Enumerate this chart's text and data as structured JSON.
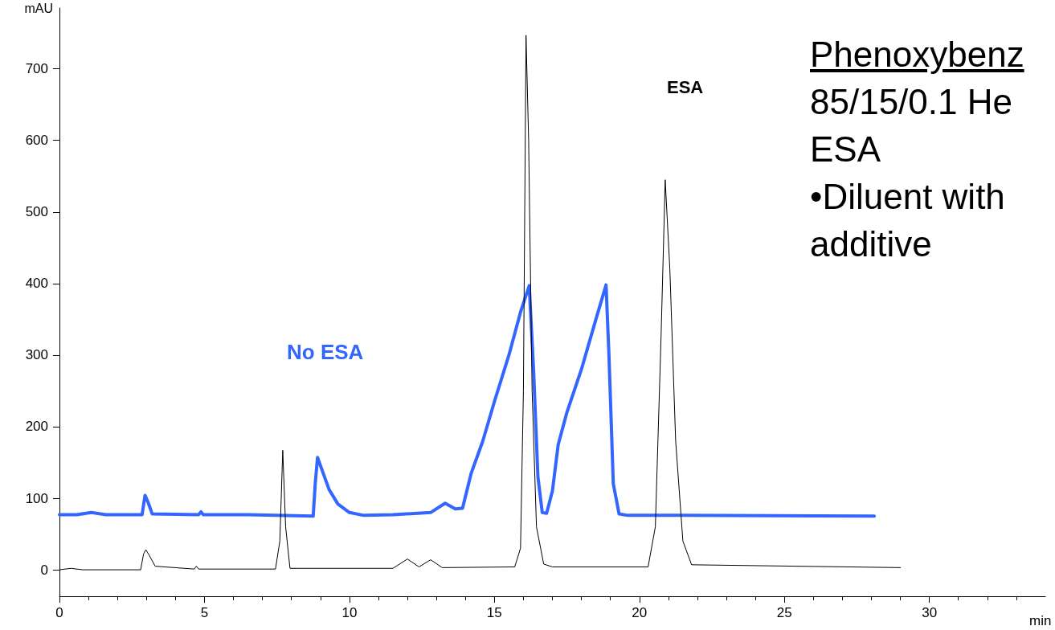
{
  "chart_data": {
    "type": "line",
    "xlabel": "min",
    "ylabel": "mAU",
    "xlim": [
      0,
      34
    ],
    "xticks": [
      0,
      5,
      10,
      15,
      20,
      25,
      30
    ],
    "ylim": [
      -37,
      785
    ],
    "yticks": [
      0,
      100,
      200,
      300,
      400,
      500,
      600,
      700
    ],
    "grid": false,
    "legend": false,
    "marker": "none",
    "line_style": "solid",
    "annotations": [
      "Phenoxybenz",
      "85/15/0.1 He",
      "ESA",
      "•Diluent with",
      "additive"
    ],
    "series": [
      {
        "name": "No ESA",
        "color": "#3366ff",
        "x": [
          0,
          0.6,
          1.1,
          1.6,
          2.85,
          2.95,
          3.05,
          3.2,
          4.8,
          4.88,
          4.96,
          6.5,
          8.75,
          8.82,
          8.9,
          9.05,
          9.3,
          9.6,
          10.0,
          10.5,
          11.5,
          12.8,
          13.3,
          13.65,
          13.9,
          14.2,
          14.6,
          15.0,
          15.5,
          15.9,
          16.2,
          16.35,
          16.5,
          16.65,
          16.8,
          17.0,
          17.2,
          17.5,
          18.0,
          18.5,
          18.85,
          18.95,
          19.1,
          19.3,
          19.6,
          21.5,
          28.1
        ],
        "values": [
          77,
          77,
          80,
          77,
          77,
          104,
          95,
          78,
          77,
          81,
          77,
          77,
          75,
          120,
          157,
          140,
          112,
          92,
          80,
          76,
          77,
          80,
          93,
          85,
          86,
          135,
          180,
          235,
          300,
          360,
          397,
          280,
          130,
          80,
          79,
          110,
          175,
          220,
          280,
          350,
          398,
          300,
          120,
          78,
          76,
          76,
          75
        ]
      },
      {
        "name": "ESA",
        "color": "#000000",
        "x": [
          0,
          0.4,
          0.8,
          2.8,
          2.9,
          2.98,
          3.1,
          3.3,
          4.65,
          4.72,
          4.8,
          7.45,
          7.6,
          7.7,
          7.8,
          7.95,
          11.5,
          12.0,
          12.4,
          12.8,
          13.2,
          15.7,
          15.9,
          16.0,
          16.09,
          16.18,
          16.3,
          16.45,
          16.7,
          17.0,
          20.3,
          20.55,
          20.75,
          20.89,
          21.05,
          21.25,
          21.5,
          21.8,
          29
        ],
        "values": [
          0,
          2,
          0,
          0,
          22,
          28,
          20,
          5,
          1,
          5,
          1,
          1,
          40,
          167,
          60,
          2,
          2,
          15,
          4,
          14,
          3,
          4,
          30,
          250,
          747,
          600,
          250,
          60,
          8,
          4,
          4,
          60,
          330,
          545,
          420,
          180,
          40,
          7,
          3
        ]
      }
    ]
  }
}
